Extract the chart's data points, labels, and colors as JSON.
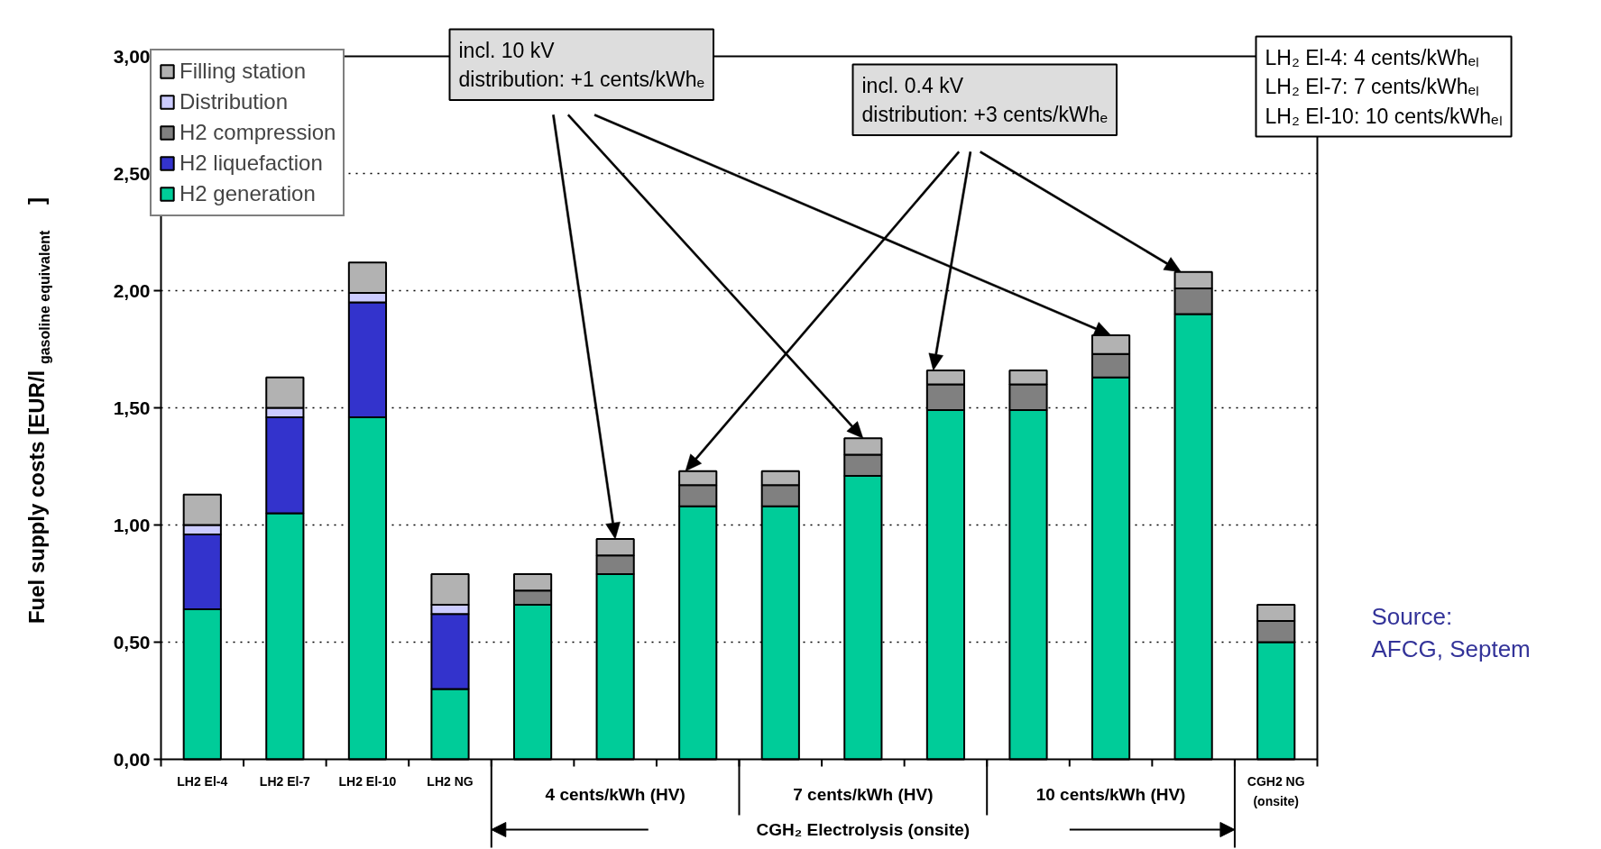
{
  "chart_data": {
    "type": "bar",
    "stacked": true,
    "categories": [
      "LH2 El-4",
      "LH2 El-7",
      "LH2 El-10",
      "LH2 NG",
      null,
      null,
      null,
      null,
      null,
      null,
      null,
      null,
      null,
      "CGH2 NG\n(onsite)"
    ],
    "series": [
      {
        "name": "H2 generation",
        "color": "#00cc99",
        "values": [
          0.64,
          1.05,
          1.46,
          0.3,
          0.66,
          0.79,
          1.08,
          1.08,
          1.21,
          1.49,
          1.49,
          1.63,
          1.9,
          0.5
        ]
      },
      {
        "name": "H2 liquefaction",
        "color": "#3333cc",
        "values": [
          0.32,
          0.41,
          0.49,
          0.32,
          null,
          null,
          null,
          null,
          null,
          null,
          null,
          null,
          null,
          null
        ]
      },
      {
        "name": "H2 compression",
        "color": "#808080",
        "values": [
          null,
          null,
          null,
          null,
          0.06,
          0.08,
          0.09,
          0.09,
          0.09,
          0.11,
          0.11,
          0.1,
          0.11,
          0.09
        ]
      },
      {
        "name": "Distribution",
        "color": "#ccccff",
        "values": [
          0.04,
          0.04,
          0.04,
          0.04,
          null,
          null,
          null,
          null,
          null,
          null,
          null,
          null,
          null,
          null
        ]
      },
      {
        "name": "Filling station",
        "color": "#b2b2b2",
        "values": [
          0.13,
          0.13,
          0.13,
          0.13,
          0.07,
          0.07,
          0.06,
          0.06,
          0.07,
          0.06,
          0.06,
          0.08,
          0.07,
          0.07
        ]
      }
    ],
    "ylim": [
      0,
      3
    ],
    "yticks": [
      {
        "value": 0,
        "label": "0,00"
      },
      {
        "value": 0.5,
        "label": "0,50"
      },
      {
        "value": 1,
        "label": "1,00"
      },
      {
        "value": 1.5,
        "label": "1,50"
      },
      {
        "value": 2,
        "label": "2,00"
      },
      {
        "value": 2.5,
        "label": "2,50"
      },
      {
        "value": 3,
        "label": "3,00"
      }
    ],
    "ylabel": "Fuel supply costs [EUR/l$_{gasoline equivalent}$ ]",
    "grid": "y",
    "legend": "top left",
    "annotations": [
      "4 cents/kWh (HV)",
      "7 cents/kWh (HV)",
      "10 cents/kWh (HV)",
      "CGH₂ Electrolysis (onsite)",
      "incl. 10 kV\ndistribution: +1 cents/kWhₑ",
      "incl. 0.4 kV\ndistribution: +3 cents/kWhₑ",
      "LH₂ El-4: 4 cents/kWhₑₗ\nLH₂ El-7: 7 cents/kWhₑₗ\nLH₂ El-10: 10 cents/kWhₑₗ",
      "Source:\nAFCG, Septem"
    ]
  }
}
